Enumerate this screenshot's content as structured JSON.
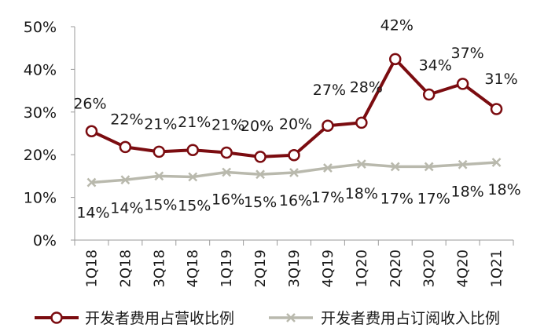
{
  "chart_data": {
    "type": "line",
    "categories": [
      "1Q18",
      "2Q18",
      "3Q18",
      "4Q18",
      "1Q19",
      "2Q19",
      "3Q19",
      "4Q19",
      "1Q20",
      "2Q20",
      "3Q20",
      "4Q20",
      "1Q21"
    ],
    "ylim": [
      0,
      50
    ],
    "yticks": [
      "0%",
      "10%",
      "20%",
      "30%",
      "40%",
      "50%"
    ],
    "series": [
      {
        "name": "开发者费用占营收比例",
        "color": "#7b0c10",
        "marker": "circle",
        "values": [
          25.5,
          21.8,
          20.7,
          21.1,
          20.5,
          19.5,
          19.9,
          26.8,
          27.5,
          42.4,
          34.1,
          36.6,
          30.7
        ],
        "labels": [
          "26%",
          "22%",
          "21%",
          "21%",
          "21%",
          "20%",
          "20%",
          "27%",
          "28%",
          "42%",
          "34%",
          "37%",
          "31%"
        ]
      },
      {
        "name": "开发者费用占订阅收入比例",
        "color": "#b9b9ad",
        "marker": "x",
        "values": [
          13.5,
          14.1,
          15.0,
          14.8,
          15.9,
          15.4,
          15.8,
          16.9,
          17.8,
          17.2,
          17.2,
          17.7,
          18.2
        ],
        "labels": [
          "14%",
          "14%",
          "15%",
          "15%",
          "16%",
          "15%",
          "16%",
          "17%",
          "18%",
          "17%",
          "17%",
          "18%",
          "18%"
        ]
      }
    ]
  }
}
